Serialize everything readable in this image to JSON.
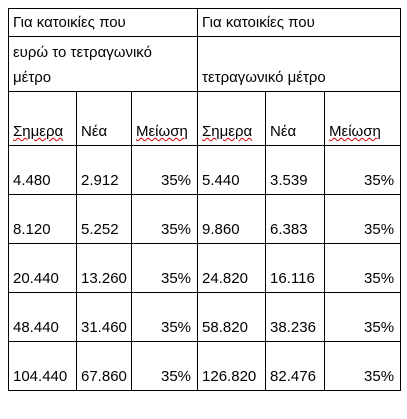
{
  "table": {
    "header": [
      "Για κατοικίες που",
      "Για κατοικίες που"
    ],
    "subheader": [
      "ευρώ το τετραγωνικό μέτρο",
      "τετραγωνικό μέτρο"
    ],
    "columns": [
      "Σημερα",
      "Νέα",
      "Μείωση",
      "Σημερα",
      "Νέα",
      "Μείωση"
    ],
    "rows": [
      [
        "4.480",
        "2.912",
        "35%",
        "5.440",
        "3.539",
        "35%"
      ],
      [
        "8.120",
        "5.252",
        "35%",
        "9.860",
        "6.383",
        "35%"
      ],
      [
        "20.440",
        "13.260",
        "35%",
        "24.820",
        "16.116",
        "35%"
      ],
      [
        "48.440",
        "31.460",
        "35%",
        "58.820",
        "38.236",
        "35%"
      ],
      [
        "104.440",
        "67.860",
        "35%",
        "126.820",
        "82.476",
        "35%"
      ]
    ]
  }
}
